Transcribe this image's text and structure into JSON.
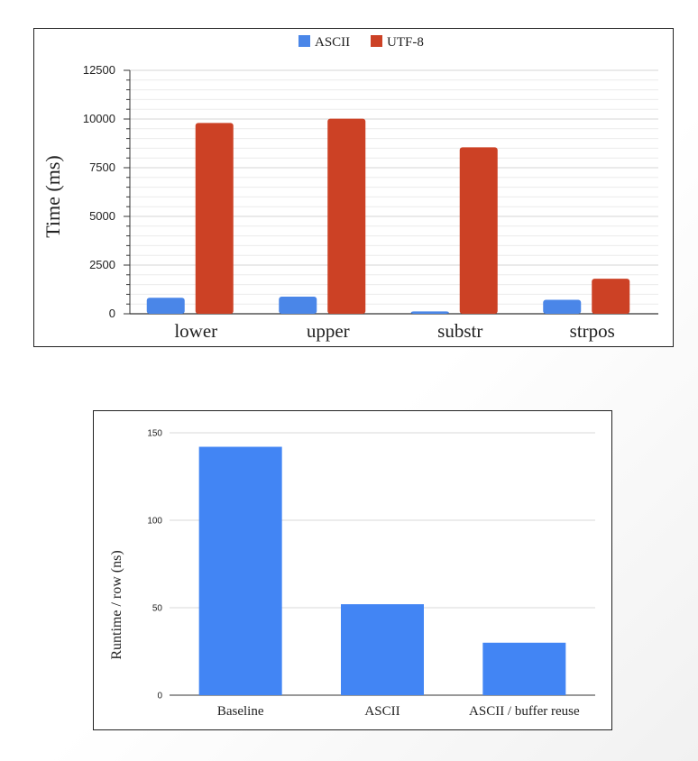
{
  "chart_data": [
    {
      "type": "bar",
      "ylabel": "Time (ms)",
      "categories": [
        "lower",
        "upper",
        "substr",
        "strpos"
      ],
      "series": [
        {
          "name": "ASCII",
          "values": [
            820,
            880,
            120,
            720
          ]
        },
        {
          "name": "UTF-8",
          "values": [
            9800,
            10020,
            8550,
            1800
          ]
        }
      ],
      "ylim": [
        0,
        12500
      ],
      "yticks": [
        "0",
        "2500",
        "5000",
        "7500",
        "10000",
        "12500"
      ],
      "grid": true,
      "legend": "top-center",
      "colors": {
        "ASCII": "#4a86e8",
        "UTF-8": "#cc4125"
      }
    },
    {
      "type": "bar",
      "ylabel": "Runtime / row (ns)",
      "categories": [
        "Baseline",
        "ASCII",
        "ASCII / buffer reuse"
      ],
      "values": [
        142,
        52,
        30
      ],
      "ylim": [
        0,
        150
      ],
      "yticks": [
        "0",
        "50",
        "100",
        "150"
      ],
      "grid": true,
      "color": "#4285f4"
    }
  ]
}
